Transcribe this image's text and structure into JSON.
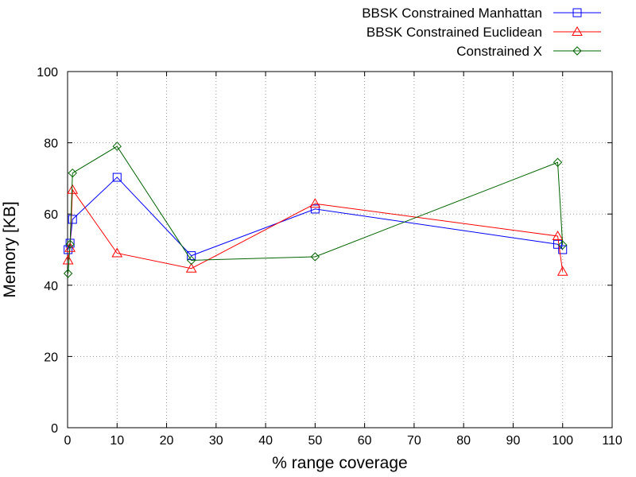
{
  "chart_data": {
    "type": "line",
    "xlabel": "% range coverage",
    "ylabel": "Memory [KB]",
    "xlim": [
      0,
      110
    ],
    "ylim": [
      0,
      100
    ],
    "x_ticks": [
      "0",
      "10",
      "20",
      "30",
      "40",
      "50",
      "60",
      "70",
      "80",
      "90",
      "100",
      "110"
    ],
    "y_ticks": [
      "0",
      "20",
      "40",
      "60",
      "80",
      "100"
    ],
    "grid": true,
    "legend_position": "top-right",
    "series": [
      {
        "name": "BBSK Constrained Manhattan",
        "color": "#0000ff",
        "marker": "square",
        "points": [
          [
            0.1,
            50.0
          ],
          [
            0.5,
            51.8
          ],
          [
            1,
            58.5
          ],
          [
            10,
            70.3
          ],
          [
            25,
            48.3
          ],
          [
            50,
            61.4
          ],
          [
            99,
            51.5
          ],
          [
            100,
            50.0
          ]
        ]
      },
      {
        "name": "BBSK Constrained Euclidean",
        "color": "#ff0000",
        "marker": "triangle",
        "points": [
          [
            0.1,
            47.0
          ],
          [
            0.5,
            50.5
          ],
          [
            1,
            66.8
          ],
          [
            10,
            49.0
          ],
          [
            25,
            44.7
          ],
          [
            50,
            62.9
          ],
          [
            99,
            53.8
          ],
          [
            100,
            43.8
          ]
        ]
      },
      {
        "name": "Constrained X",
        "color": "#006400",
        "marker": "diamond",
        "points": [
          [
            0.1,
            43.3
          ],
          [
            0.5,
            51.5
          ],
          [
            1,
            71.5
          ],
          [
            10,
            79.0
          ],
          [
            25,
            47.0
          ],
          [
            50,
            48.0
          ],
          [
            99,
            74.5
          ],
          [
            100,
            51.3
          ]
        ]
      }
    ]
  }
}
